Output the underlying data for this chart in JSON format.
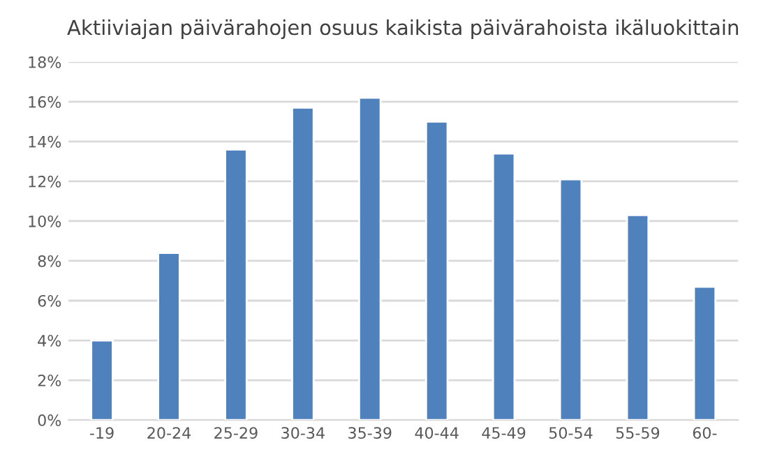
{
  "chart_data": {
    "type": "bar",
    "title": "Aktiiviajan päivärahojen osuus kaikista päivärahoista ikäluokittain",
    "categories": [
      "-19",
      "20-24",
      "25-29",
      "30-34",
      "35-39",
      "40-44",
      "45-49",
      "50-54",
      "55-59",
      "60-"
    ],
    "values": [
      4.0,
      8.4,
      13.6,
      15.7,
      16.2,
      15.0,
      13.4,
      12.1,
      10.3,
      6.7
    ],
    "color": "#4f81bd",
    "ylim": [
      0,
      18
    ],
    "yticks": [
      {
        "value": 0,
        "label": "0%"
      },
      {
        "value": 2,
        "label": "2%"
      },
      {
        "value": 4,
        "label": "4%"
      },
      {
        "value": 6,
        "label": "6%"
      },
      {
        "value": 8,
        "label": "8%"
      },
      {
        "value": 10,
        "label": "10%"
      },
      {
        "value": 12,
        "label": "12%"
      },
      {
        "value": 14,
        "label": "14%"
      },
      {
        "value": 16,
        "label": "16%"
      },
      {
        "value": 18,
        "label": "18%"
      }
    ],
    "grid": "y",
    "legend": false
  }
}
